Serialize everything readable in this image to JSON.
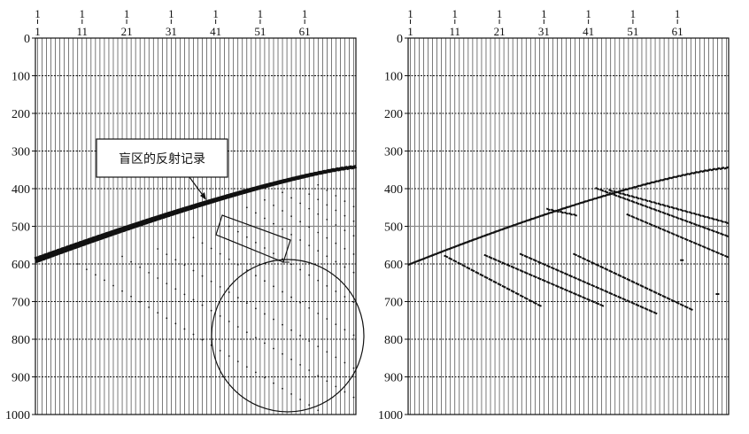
{
  "panels": [
    {
      "id": "left",
      "top_ticks": [
        "1",
        "11",
        "21",
        "31",
        "41",
        "51",
        "61"
      ],
      "trace_numbers_top": [
        "1",
        "1",
        "1",
        "1",
        "1",
        "1",
        "1"
      ],
      "y_ticks": [
        "0",
        "100",
        "200",
        "300",
        "400",
        "500",
        "600",
        "700",
        "800",
        "900",
        "1000"
      ]
    },
    {
      "id": "right",
      "top_ticks": [
        "1",
        "11",
        "21",
        "31",
        "41",
        "51",
        "61"
      ],
      "trace_numbers_top": [
        "1",
        "1",
        "1",
        "1",
        "1",
        "1",
        "1"
      ],
      "y_ticks": [
        "0",
        "100",
        "200",
        "300",
        "400",
        "500",
        "600",
        "700",
        "800",
        "900",
        "1000"
      ]
    }
  ],
  "annotation": {
    "label": "盲区的反射记录"
  },
  "colors": {
    "ink": "#111111",
    "grid": "#222222",
    "reference_line": "#888888",
    "background": "#ffffff"
  }
}
